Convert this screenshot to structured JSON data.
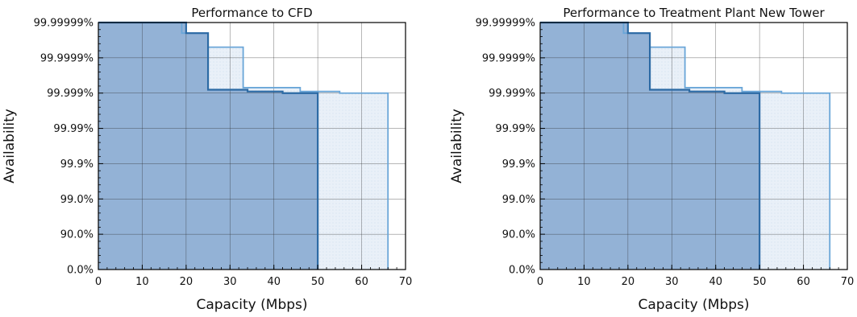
{
  "figure": {
    "colors": {
      "primary_fill": "#93b2d6",
      "secondary_fill": "#e9f0f8",
      "primary_line": "#2c6aa4",
      "secondary_line": "#6aa6d8",
      "grid": "#2a2a2a"
    }
  },
  "chart_data": [
    {
      "type": "area",
      "title": "Performance to CFD",
      "xlabel": "Capacity (Mbps)",
      "ylabel": "Availability",
      "xlim": [
        0,
        70
      ],
      "x_ticks": [
        "0",
        "10",
        "20",
        "30",
        "40",
        "50",
        "60",
        "70"
      ],
      "y_scale": "availability (nines)",
      "y_ticks": [
        "0.0%",
        "90.0%",
        "99.0%",
        "99.9%",
        "99.99%",
        "99.999%",
        "99.9999%",
        "99.99999%"
      ],
      "grid": true,
      "series": [
        {
          "points": [
            [
              0,
              "99.99999%"
            ],
            [
              20,
              "99.99999%"
            ],
            [
              20,
              "99.99998%"
            ],
            [
              25,
              "99.99998%"
            ],
            [
              25,
              "99.9992%"
            ],
            [
              34,
              "99.9992%"
            ],
            [
              34,
              "99.9991%"
            ],
            [
              42,
              "99.9991%"
            ],
            [
              42,
              "99.999%"
            ],
            [
              50,
              "99.999%"
            ],
            [
              50,
              "0.0%"
            ]
          ]
        },
        {
          "points": [
            [
              0,
              "99.99999%"
            ],
            [
              19,
              "99.99999%"
            ],
            [
              19,
              "99.99998%"
            ],
            [
              25,
              "99.99998%"
            ],
            [
              25,
              "99.99995%"
            ],
            [
              33,
              "99.99995%"
            ],
            [
              33,
              "99.9993%"
            ],
            [
              46,
              "99.9993%"
            ],
            [
              46,
              "99.9991%"
            ],
            [
              55,
              "99.9991%"
            ],
            [
              55,
              "99.999%"
            ],
            [
              66,
              "99.999%"
            ],
            [
              66,
              "0.0%"
            ]
          ]
        }
      ]
    },
    {
      "type": "area",
      "title": "Performance to Treatment Plant New Tower",
      "xlabel": "Capacity (Mbps)",
      "ylabel": "Availability",
      "xlim": [
        0,
        70
      ],
      "x_ticks": [
        "0",
        "10",
        "20",
        "30",
        "40",
        "50",
        "60",
        "70"
      ],
      "y_scale": "availability (nines)",
      "y_ticks": [
        "0.0%",
        "90.0%",
        "99.0%",
        "99.9%",
        "99.99%",
        "99.999%",
        "99.9999%",
        "99.99999%"
      ],
      "grid": true,
      "series": [
        {
          "points": [
            [
              0,
              "99.99999%"
            ],
            [
              20,
              "99.99999%"
            ],
            [
              20,
              "99.99998%"
            ],
            [
              25,
              "99.99998%"
            ],
            [
              25,
              "99.9992%"
            ],
            [
              34,
              "99.9992%"
            ],
            [
              34,
              "99.9991%"
            ],
            [
              42,
              "99.9991%"
            ],
            [
              42,
              "99.999%"
            ],
            [
              50,
              "99.999%"
            ],
            [
              50,
              "0.0%"
            ]
          ]
        },
        {
          "points": [
            [
              0,
              "99.99999%"
            ],
            [
              19,
              "99.99999%"
            ],
            [
              19,
              "99.99998%"
            ],
            [
              25,
              "99.99998%"
            ],
            [
              25,
              "99.99995%"
            ],
            [
              33,
              "99.99995%"
            ],
            [
              33,
              "99.9993%"
            ],
            [
              46,
              "99.9993%"
            ],
            [
              46,
              "99.9991%"
            ],
            [
              55,
              "99.9991%"
            ],
            [
              55,
              "99.999%"
            ],
            [
              66,
              "99.999%"
            ],
            [
              66,
              "0.0%"
            ]
          ]
        }
      ]
    }
  ]
}
